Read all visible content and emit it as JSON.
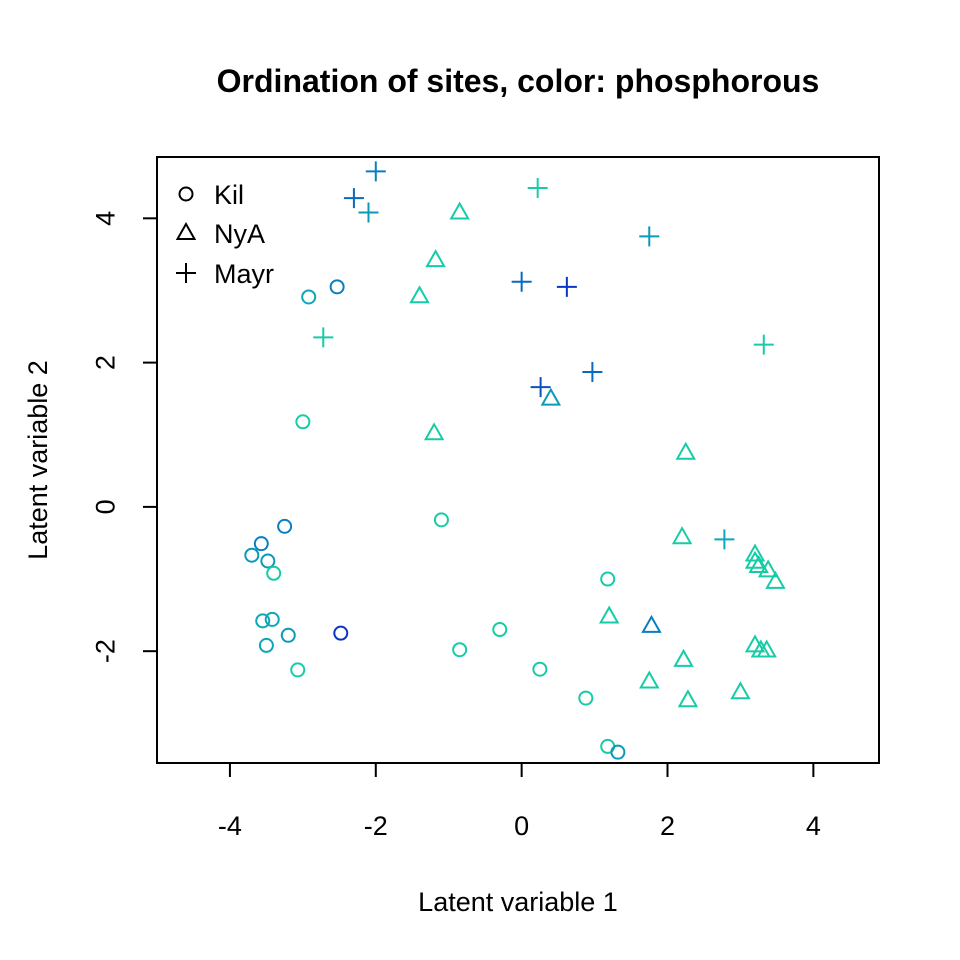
{
  "chart_data": {
    "type": "scatter",
    "title": "Ordination of sites, color: phosphorous",
    "xlabel": "Latent variable 1",
    "ylabel": "Latent variable 2",
    "xlim": [
      -5.0,
      4.9
    ],
    "ylim": [
      -3.55,
      4.85
    ],
    "xticks": [
      -4,
      -2,
      0,
      2,
      4
    ],
    "yticks": [
      -2,
      0,
      2,
      4
    ],
    "xtick_labels": [
      "-4",
      "-2",
      "0",
      "2",
      "4"
    ],
    "ytick_labels": [
      "-2",
      "0",
      "2",
      "4"
    ],
    "grid": false,
    "legend": {
      "position": "top-left",
      "entries": [
        {
          "label": "Kil",
          "marker": "circle"
        },
        {
          "label": "NyA",
          "marker": "triangle"
        },
        {
          "label": "Mayr",
          "marker": "plus"
        }
      ]
    },
    "series": [
      {
        "name": "Kil",
        "marker": "circle",
        "points": [
          {
            "x": -2.92,
            "y": 2.91,
            "color": "#0aa8b8"
          },
          {
            "x": -2.53,
            "y": 3.05,
            "color": "#0a7fc0"
          },
          {
            "x": -3.0,
            "y": 1.18,
            "color": "#16cca6"
          },
          {
            "x": -3.25,
            "y": -0.27,
            "color": "#0a7fc0"
          },
          {
            "x": -3.57,
            "y": -0.51,
            "color": "#0a7fc0"
          },
          {
            "x": -3.7,
            "y": -0.67,
            "color": "#0a9ab8"
          },
          {
            "x": -3.48,
            "y": -0.75,
            "color": "#0a9ab8"
          },
          {
            "x": -3.4,
            "y": -0.92,
            "color": "#16cca6"
          },
          {
            "x": -3.55,
            "y": -1.58,
            "color": "#0aa8b8"
          },
          {
            "x": -3.42,
            "y": -1.56,
            "color": "#0aa8b8"
          },
          {
            "x": -3.2,
            "y": -1.78,
            "color": "#0a9ab8"
          },
          {
            "x": -3.5,
            "y": -1.92,
            "color": "#0aa8b8"
          },
          {
            "x": -3.07,
            "y": -2.26,
            "color": "#16cca6"
          },
          {
            "x": -2.48,
            "y": -1.75,
            "color": "#0a35c8"
          },
          {
            "x": -1.1,
            "y": -0.18,
            "color": "#16cca6"
          },
          {
            "x": -0.85,
            "y": -1.98,
            "color": "#16cca6"
          },
          {
            "x": -0.3,
            "y": -1.7,
            "color": "#16cca6"
          },
          {
            "x": 0.25,
            "y": -2.25,
            "color": "#16cca6"
          },
          {
            "x": 1.18,
            "y": -1.0,
            "color": "#16cca6"
          },
          {
            "x": 0.88,
            "y": -2.65,
            "color": "#16cca6"
          },
          {
            "x": 1.18,
            "y": -3.32,
            "color": "#16cca6"
          },
          {
            "x": 1.32,
            "y": -3.4,
            "color": "#0a9ab8"
          }
        ]
      },
      {
        "name": "NyA",
        "marker": "triangle",
        "points": [
          {
            "x": -0.85,
            "y": 4.08,
            "color": "#16cca6"
          },
          {
            "x": -1.18,
            "y": 3.42,
            "color": "#16cca6"
          },
          {
            "x": -1.4,
            "y": 2.92,
            "color": "#16cca6"
          },
          {
            "x": -1.2,
            "y": 1.02,
            "color": "#16cca6"
          },
          {
            "x": 0.4,
            "y": 1.5,
            "color": "#0a9ab8"
          },
          {
            "x": 2.25,
            "y": 0.75,
            "color": "#16cca6"
          },
          {
            "x": 2.2,
            "y": -0.42,
            "color": "#16cca6"
          },
          {
            "x": 1.2,
            "y": -1.52,
            "color": "#16cca6"
          },
          {
            "x": 1.78,
            "y": -1.65,
            "color": "#0a7fc0"
          },
          {
            "x": 2.22,
            "y": -2.12,
            "color": "#16cca6"
          },
          {
            "x": 1.75,
            "y": -2.42,
            "color": "#16cca6"
          },
          {
            "x": 2.28,
            "y": -2.68,
            "color": "#16cca6"
          },
          {
            "x": 3.0,
            "y": -2.57,
            "color": "#16cca6"
          },
          {
            "x": 3.2,
            "y": -0.66,
            "color": "#16cca6"
          },
          {
            "x": 3.2,
            "y": -0.76,
            "color": "#16cca6"
          },
          {
            "x": 3.25,
            "y": -0.82,
            "color": "#16cca6"
          },
          {
            "x": 3.38,
            "y": -0.88,
            "color": "#16cca6"
          },
          {
            "x": 3.48,
            "y": -1.04,
            "color": "#16cca6"
          },
          {
            "x": 3.2,
            "y": -1.92,
            "color": "#16cca6"
          },
          {
            "x": 3.28,
            "y": -1.99,
            "color": "#16cca6"
          },
          {
            "x": 3.36,
            "y": -1.99,
            "color": "#16cca6"
          }
        ]
      },
      {
        "name": "Mayr",
        "marker": "plus",
        "points": [
          {
            "x": -2.0,
            "y": 4.65,
            "color": "#0a7fc0"
          },
          {
            "x": -2.3,
            "y": 4.28,
            "color": "#0a68c0"
          },
          {
            "x": -2.1,
            "y": 4.08,
            "color": "#0a9ab8"
          },
          {
            "x": 0.22,
            "y": 4.42,
            "color": "#16cca6"
          },
          {
            "x": 1.75,
            "y": 3.75,
            "color": "#0a9ab8"
          },
          {
            "x": 0.0,
            "y": 3.12,
            "color": "#0a68c0"
          },
          {
            "x": 0.62,
            "y": 3.05,
            "color": "#0a35c8"
          },
          {
            "x": -2.72,
            "y": 2.35,
            "color": "#16cca6"
          },
          {
            "x": 3.32,
            "y": 2.25,
            "color": "#16cca6"
          },
          {
            "x": 0.97,
            "y": 1.87,
            "color": "#0a68c0"
          },
          {
            "x": 0.26,
            "y": 1.66,
            "color": "#0a52c0"
          },
          {
            "x": 2.78,
            "y": -0.45,
            "color": "#0aa8b8"
          }
        ]
      }
    ]
  }
}
